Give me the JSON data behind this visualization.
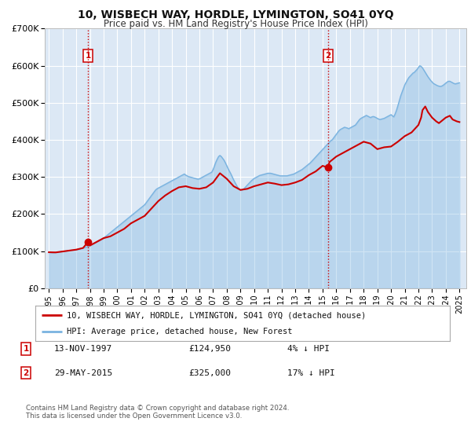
{
  "title": "10, WISBECH WAY, HORDLE, LYMINGTON, SO41 0YQ",
  "subtitle": "Price paid vs. HM Land Registry's House Price Index (HPI)",
  "bg_color": "#f0f4fa",
  "plot_bg_color": "#dce8f5",
  "grid_color": "#ffffff",
  "ylim": [
    0,
    700000
  ],
  "yticks": [
    0,
    100000,
    200000,
    300000,
    400000,
    500000,
    600000,
    700000
  ],
  "ytick_labels": [
    "£0",
    "£100K",
    "£200K",
    "£300K",
    "£400K",
    "£500K",
    "£600K",
    "£700K"
  ],
  "xlim_start": 1994.7,
  "xlim_end": 2025.5,
  "xtick_years": [
    1995,
    1996,
    1997,
    1998,
    1999,
    2000,
    2001,
    2002,
    2003,
    2004,
    2005,
    2006,
    2007,
    2008,
    2009,
    2010,
    2011,
    2012,
    2013,
    2014,
    2015,
    2016,
    2017,
    2018,
    2019,
    2020,
    2021,
    2022,
    2023,
    2024,
    2025
  ],
  "sale1_x": 1997.87,
  "sale1_y": 124950,
  "sale1_label": "1",
  "sale2_x": 2015.41,
  "sale2_y": 325000,
  "sale2_label": "2",
  "sale_color": "#cc0000",
  "hpi_color": "#7ab3e0",
  "legend_line1": "10, WISBECH WAY, HORDLE, LYMINGTON, SO41 0YQ (detached house)",
  "legend_line2": "HPI: Average price, detached house, New Forest",
  "table_row1": [
    "1",
    "13-NOV-1997",
    "£124,950",
    "4% ↓ HPI"
  ],
  "table_row2": [
    "2",
    "29-MAY-2015",
    "£325,000",
    "17% ↓ HPI"
  ],
  "footer1": "Contains HM Land Registry data © Crown copyright and database right 2024.",
  "footer2": "This data is licensed under the Open Government Licence v3.0.",
  "hpi_data": [
    [
      1995.0,
      97000
    ],
    [
      1995.1,
      96500
    ],
    [
      1995.2,
      96000
    ],
    [
      1995.3,
      95800
    ],
    [
      1995.4,
      96000
    ],
    [
      1995.5,
      96500
    ],
    [
      1995.6,
      97000
    ],
    [
      1995.7,
      97500
    ],
    [
      1995.8,
      98000
    ],
    [
      1995.9,
      98500
    ],
    [
      1996.0,
      99000
    ],
    [
      1996.1,
      99500
    ],
    [
      1996.2,
      100000
    ],
    [
      1996.3,
      100500
    ],
    [
      1996.4,
      101000
    ],
    [
      1996.5,
      101500
    ],
    [
      1996.6,
      102000
    ],
    [
      1996.7,
      102500
    ],
    [
      1996.8,
      103000
    ],
    [
      1996.9,
      103500
    ],
    [
      1997.0,
      104000
    ],
    [
      1997.1,
      104800
    ],
    [
      1997.2,
      105600
    ],
    [
      1997.3,
      106500
    ],
    [
      1997.4,
      107500
    ],
    [
      1997.5,
      108500
    ],
    [
      1997.6,
      109500
    ],
    [
      1997.7,
      110500
    ],
    [
      1997.8,
      112000
    ],
    [
      1997.9,
      113500
    ],
    [
      1998.0,
      115000
    ],
    [
      1998.1,
      117000
    ],
    [
      1998.2,
      119000
    ],
    [
      1998.3,
      121000
    ],
    [
      1998.4,
      123000
    ],
    [
      1998.5,
      125000
    ],
    [
      1998.6,
      127000
    ],
    [
      1998.7,
      129000
    ],
    [
      1998.8,
      131000
    ],
    [
      1998.9,
      133000
    ],
    [
      1999.0,
      135000
    ],
    [
      1999.1,
      138000
    ],
    [
      1999.2,
      141000
    ],
    [
      1999.3,
      144000
    ],
    [
      1999.4,
      147000
    ],
    [
      1999.5,
      150000
    ],
    [
      1999.6,
      153000
    ],
    [
      1999.7,
      156000
    ],
    [
      1999.8,
      159000
    ],
    [
      1999.9,
      162000
    ],
    [
      2000.0,
      165000
    ],
    [
      2000.1,
      168000
    ],
    [
      2000.2,
      171000
    ],
    [
      2000.3,
      174000
    ],
    [
      2000.4,
      177000
    ],
    [
      2000.5,
      180000
    ],
    [
      2000.6,
      183000
    ],
    [
      2000.7,
      186000
    ],
    [
      2000.8,
      189000
    ],
    [
      2000.9,
      192000
    ],
    [
      2001.0,
      195000
    ],
    [
      2001.1,
      198000
    ],
    [
      2001.2,
      201000
    ],
    [
      2001.3,
      204000
    ],
    [
      2001.4,
      207000
    ],
    [
      2001.5,
      210000
    ],
    [
      2001.6,
      213000
    ],
    [
      2001.7,
      216000
    ],
    [
      2001.8,
      219000
    ],
    [
      2001.9,
      222000
    ],
    [
      2002.0,
      225000
    ],
    [
      2002.1,
      230000
    ],
    [
      2002.2,
      235000
    ],
    [
      2002.3,
      240000
    ],
    [
      2002.4,
      245000
    ],
    [
      2002.5,
      250000
    ],
    [
      2002.6,
      255000
    ],
    [
      2002.7,
      260000
    ],
    [
      2002.8,
      265000
    ],
    [
      2002.9,
      268000
    ],
    [
      2003.0,
      270000
    ],
    [
      2003.1,
      272000
    ],
    [
      2003.2,
      274000
    ],
    [
      2003.3,
      276000
    ],
    [
      2003.4,
      278000
    ],
    [
      2003.5,
      280000
    ],
    [
      2003.6,
      282000
    ],
    [
      2003.7,
      284000
    ],
    [
      2003.8,
      286000
    ],
    [
      2003.9,
      288000
    ],
    [
      2004.0,
      290000
    ],
    [
      2004.1,
      292000
    ],
    [
      2004.2,
      294000
    ],
    [
      2004.3,
      296000
    ],
    [
      2004.4,
      298000
    ],
    [
      2004.5,
      300000
    ],
    [
      2004.6,
      302000
    ],
    [
      2004.7,
      304000
    ],
    [
      2004.8,
      306000
    ],
    [
      2004.9,
      308000
    ],
    [
      2005.0,
      305000
    ],
    [
      2005.1,
      303000
    ],
    [
      2005.2,
      301000
    ],
    [
      2005.3,
      300000
    ],
    [
      2005.4,
      299000
    ],
    [
      2005.5,
      298000
    ],
    [
      2005.6,
      297000
    ],
    [
      2005.7,
      296000
    ],
    [
      2005.8,
      295000
    ],
    [
      2005.9,
      294000
    ],
    [
      2006.0,
      295000
    ],
    [
      2006.1,
      297000
    ],
    [
      2006.2,
      299000
    ],
    [
      2006.3,
      301000
    ],
    [
      2006.4,
      303000
    ],
    [
      2006.5,
      305000
    ],
    [
      2006.6,
      307000
    ],
    [
      2006.7,
      309000
    ],
    [
      2006.8,
      311000
    ],
    [
      2006.9,
      313000
    ],
    [
      2007.0,
      320000
    ],
    [
      2007.1,
      330000
    ],
    [
      2007.2,
      340000
    ],
    [
      2007.3,
      348000
    ],
    [
      2007.4,
      355000
    ],
    [
      2007.5,
      358000
    ],
    [
      2007.6,
      355000
    ],
    [
      2007.7,
      350000
    ],
    [
      2007.8,
      345000
    ],
    [
      2007.9,
      338000
    ],
    [
      2008.0,
      330000
    ],
    [
      2008.1,
      322000
    ],
    [
      2008.2,
      315000
    ],
    [
      2008.3,
      308000
    ],
    [
      2008.4,
      300000
    ],
    [
      2008.5,
      292000
    ],
    [
      2008.6,
      285000
    ],
    [
      2008.7,
      278000
    ],
    [
      2008.8,
      272000
    ],
    [
      2008.9,
      268000
    ],
    [
      2009.0,
      265000
    ],
    [
      2009.1,
      265000
    ],
    [
      2009.2,
      267000
    ],
    [
      2009.3,
      270000
    ],
    [
      2009.4,
      274000
    ],
    [
      2009.5,
      278000
    ],
    [
      2009.6,
      282000
    ],
    [
      2009.7,
      286000
    ],
    [
      2009.8,
      290000
    ],
    [
      2009.9,
      293000
    ],
    [
      2010.0,
      296000
    ],
    [
      2010.1,
      298000
    ],
    [
      2010.2,
      300000
    ],
    [
      2010.3,
      302000
    ],
    [
      2010.4,
      304000
    ],
    [
      2010.5,
      305000
    ],
    [
      2010.6,
      306000
    ],
    [
      2010.7,
      307000
    ],
    [
      2010.8,
      308000
    ],
    [
      2010.9,
      309000
    ],
    [
      2011.0,
      310000
    ],
    [
      2011.1,
      310000
    ],
    [
      2011.2,
      310000
    ],
    [
      2011.3,
      309000
    ],
    [
      2011.4,
      308000
    ],
    [
      2011.5,
      307000
    ],
    [
      2011.6,
      306000
    ],
    [
      2011.7,
      305000
    ],
    [
      2011.8,
      304000
    ],
    [
      2011.9,
      303000
    ],
    [
      2012.0,
      303000
    ],
    [
      2012.1,
      303000
    ],
    [
      2012.2,
      303000
    ],
    [
      2012.3,
      303000
    ],
    [
      2012.4,
      303000
    ],
    [
      2012.5,
      304000
    ],
    [
      2012.6,
      305000
    ],
    [
      2012.7,
      306000
    ],
    [
      2012.8,
      307000
    ],
    [
      2012.9,
      308000
    ],
    [
      2013.0,
      310000
    ],
    [
      2013.1,
      312000
    ],
    [
      2013.2,
      314000
    ],
    [
      2013.3,
      316000
    ],
    [
      2013.4,
      318000
    ],
    [
      2013.5,
      320000
    ],
    [
      2013.6,
      323000
    ],
    [
      2013.7,
      326000
    ],
    [
      2013.8,
      329000
    ],
    [
      2013.9,
      332000
    ],
    [
      2014.0,
      335000
    ],
    [
      2014.1,
      338000
    ],
    [
      2014.2,
      342000
    ],
    [
      2014.3,
      346000
    ],
    [
      2014.4,
      350000
    ],
    [
      2014.5,
      354000
    ],
    [
      2014.6,
      358000
    ],
    [
      2014.7,
      362000
    ],
    [
      2014.8,
      366000
    ],
    [
      2014.9,
      370000
    ],
    [
      2015.0,
      374000
    ],
    [
      2015.1,
      378000
    ],
    [
      2015.2,
      382000
    ],
    [
      2015.3,
      386000
    ],
    [
      2015.4,
      390000
    ],
    [
      2015.5,
      394000
    ],
    [
      2015.6,
      398000
    ],
    [
      2015.7,
      400000
    ],
    [
      2015.8,
      405000
    ],
    [
      2015.9,
      410000
    ],
    [
      2016.0,
      415000
    ],
    [
      2016.1,
      420000
    ],
    [
      2016.2,
      425000
    ],
    [
      2016.3,
      428000
    ],
    [
      2016.4,
      430000
    ],
    [
      2016.5,
      432000
    ],
    [
      2016.6,
      434000
    ],
    [
      2016.7,
      433000
    ],
    [
      2016.8,
      432000
    ],
    [
      2016.9,
      430000
    ],
    [
      2017.0,
      432000
    ],
    [
      2017.1,
      434000
    ],
    [
      2017.2,
      436000
    ],
    [
      2017.3,
      438000
    ],
    [
      2017.4,
      440000
    ],
    [
      2017.5,
      445000
    ],
    [
      2017.6,
      450000
    ],
    [
      2017.7,
      455000
    ],
    [
      2017.8,
      458000
    ],
    [
      2017.9,
      460000
    ],
    [
      2018.0,
      462000
    ],
    [
      2018.1,
      464000
    ],
    [
      2018.2,
      466000
    ],
    [
      2018.3,
      464000
    ],
    [
      2018.4,
      462000
    ],
    [
      2018.5,
      460000
    ],
    [
      2018.6,
      462000
    ],
    [
      2018.7,
      463000
    ],
    [
      2018.8,
      462000
    ],
    [
      2018.9,
      460000
    ],
    [
      2019.0,
      458000
    ],
    [
      2019.1,
      456000
    ],
    [
      2019.2,
      455000
    ],
    [
      2019.3,
      456000
    ],
    [
      2019.4,
      457000
    ],
    [
      2019.5,
      458000
    ],
    [
      2019.6,
      460000
    ],
    [
      2019.7,
      462000
    ],
    [
      2019.8,
      464000
    ],
    [
      2019.9,
      466000
    ],
    [
      2020.0,
      468000
    ],
    [
      2020.1,
      465000
    ],
    [
      2020.2,
      462000
    ],
    [
      2020.3,
      470000
    ],
    [
      2020.4,
      480000
    ],
    [
      2020.5,
      492000
    ],
    [
      2020.6,
      505000
    ],
    [
      2020.7,
      518000
    ],
    [
      2020.8,
      528000
    ],
    [
      2020.9,
      538000
    ],
    [
      2021.0,
      548000
    ],
    [
      2021.1,
      555000
    ],
    [
      2021.2,
      562000
    ],
    [
      2021.3,
      568000
    ],
    [
      2021.4,
      572000
    ],
    [
      2021.5,
      576000
    ],
    [
      2021.6,
      580000
    ],
    [
      2021.7,
      582000
    ],
    [
      2021.8,
      586000
    ],
    [
      2021.9,
      590000
    ],
    [
      2022.0,
      595000
    ],
    [
      2022.1,
      600000
    ],
    [
      2022.2,
      598000
    ],
    [
      2022.3,
      594000
    ],
    [
      2022.4,
      588000
    ],
    [
      2022.5,
      582000
    ],
    [
      2022.6,
      576000
    ],
    [
      2022.7,
      570000
    ],
    [
      2022.8,
      565000
    ],
    [
      2022.9,
      560000
    ],
    [
      2023.0,
      556000
    ],
    [
      2023.1,
      552000
    ],
    [
      2023.2,
      550000
    ],
    [
      2023.3,
      548000
    ],
    [
      2023.4,
      546000
    ],
    [
      2023.5,
      545000
    ],
    [
      2023.6,
      544000
    ],
    [
      2023.7,
      545000
    ],
    [
      2023.8,
      547000
    ],
    [
      2023.9,
      550000
    ],
    [
      2024.0,
      553000
    ],
    [
      2024.1,
      556000
    ],
    [
      2024.2,
      558000
    ],
    [
      2024.3,
      558000
    ],
    [
      2024.4,
      556000
    ],
    [
      2024.5,
      554000
    ],
    [
      2024.6,
      552000
    ],
    [
      2024.7,
      551000
    ],
    [
      2024.8,
      552000
    ],
    [
      2024.9,
      553000
    ],
    [
      2025.0,
      554000
    ]
  ],
  "price_data": [
    [
      1995.0,
      97000
    ],
    [
      1995.5,
      96500
    ],
    [
      1996.0,
      99000
    ],
    [
      1996.5,
      101500
    ],
    [
      1997.0,
      104000
    ],
    [
      1997.5,
      108500
    ],
    [
      1997.87,
      124950
    ],
    [
      1998.0,
      115000
    ],
    [
      1998.5,
      125000
    ],
    [
      1999.0,
      135000
    ],
    [
      1999.5,
      140000
    ],
    [
      2000.0,
      150000
    ],
    [
      2000.5,
      160000
    ],
    [
      2001.0,
      175000
    ],
    [
      2001.5,
      185000
    ],
    [
      2002.0,
      195000
    ],
    [
      2002.5,
      215000
    ],
    [
      2003.0,
      235000
    ],
    [
      2003.5,
      250000
    ],
    [
      2004.0,
      262000
    ],
    [
      2004.5,
      272000
    ],
    [
      2005.0,
      275000
    ],
    [
      2005.5,
      270000
    ],
    [
      2006.0,
      268000
    ],
    [
      2006.5,
      272000
    ],
    [
      2007.0,
      285000
    ],
    [
      2007.3,
      300000
    ],
    [
      2007.5,
      310000
    ],
    [
      2008.0,
      295000
    ],
    [
      2008.5,
      275000
    ],
    [
      2009.0,
      265000
    ],
    [
      2009.5,
      268000
    ],
    [
      2010.0,
      275000
    ],
    [
      2010.5,
      280000
    ],
    [
      2011.0,
      285000
    ],
    [
      2011.5,
      282000
    ],
    [
      2012.0,
      278000
    ],
    [
      2012.5,
      280000
    ],
    [
      2013.0,
      285000
    ],
    [
      2013.5,
      292000
    ],
    [
      2014.0,
      305000
    ],
    [
      2014.5,
      315000
    ],
    [
      2015.0,
      330000
    ],
    [
      2015.41,
      325000
    ],
    [
      2015.5,
      340000
    ],
    [
      2016.0,
      355000
    ],
    [
      2016.5,
      365000
    ],
    [
      2017.0,
      375000
    ],
    [
      2017.5,
      385000
    ],
    [
      2018.0,
      395000
    ],
    [
      2018.5,
      390000
    ],
    [
      2019.0,
      375000
    ],
    [
      2019.5,
      380000
    ],
    [
      2020.0,
      382000
    ],
    [
      2020.5,
      395000
    ],
    [
      2021.0,
      410000
    ],
    [
      2021.5,
      420000
    ],
    [
      2022.0,
      440000
    ],
    [
      2022.2,
      460000
    ],
    [
      2022.3,
      480000
    ],
    [
      2022.5,
      490000
    ],
    [
      2022.7,
      475000
    ],
    [
      2023.0,
      460000
    ],
    [
      2023.3,
      450000
    ],
    [
      2023.5,
      445000
    ],
    [
      2024.0,
      460000
    ],
    [
      2024.3,
      465000
    ],
    [
      2024.5,
      455000
    ],
    [
      2024.8,
      450000
    ],
    [
      2025.0,
      448000
    ]
  ]
}
